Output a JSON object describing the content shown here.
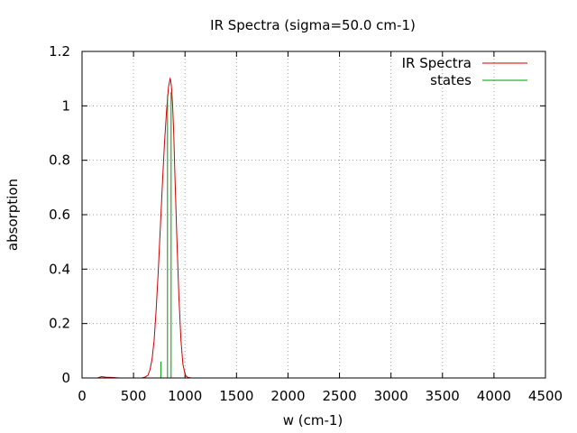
{
  "chart_data": {
    "type": "line",
    "title": "IR Spectra (sigma=50.0 cm-1)",
    "xlabel": "w (cm-1)",
    "ylabel": "absorption",
    "xlim": [
      0,
      4500
    ],
    "ylim": [
      0,
      1.2
    ],
    "xticks": [
      0,
      500,
      1000,
      1500,
      2000,
      2500,
      3000,
      3500,
      4000,
      4500
    ],
    "yticks": [
      0,
      0.2,
      0.4,
      0.6,
      0.8,
      1,
      1.2
    ],
    "xtick_labels": [
      "0",
      "500",
      "1000",
      "1500",
      "2000",
      "2500",
      "3000",
      "3500",
      "4000",
      "4500"
    ],
    "ytick_labels": [
      "0",
      "0.2",
      "0.4",
      "0.6",
      "0.8",
      "1",
      "1.2"
    ],
    "grid": true,
    "legend_position": "top-right",
    "series": [
      {
        "name": "IR Spectra",
        "kind": "line",
        "color": "#cc0000",
        "x": [
          100,
          150,
          190,
          230,
          280,
          330,
          370,
          420,
          500,
          580,
          610,
          640,
          660,
          680,
          700,
          720,
          740,
          760,
          780,
          800,
          820,
          840,
          850,
          855,
          860,
          865,
          870,
          880,
          890,
          900,
          920,
          940,
          960,
          980,
          1000,
          1010,
          1030,
          1060,
          1100
        ],
        "y": [
          0,
          0,
          0.005,
          0.003,
          0.002,
          0.001,
          0,
          0,
          0,
          0,
          0.003,
          0.01,
          0.03,
          0.07,
          0.14,
          0.25,
          0.39,
          0.55,
          0.71,
          0.86,
          0.98,
          1.07,
          1.09,
          1.1,
          1.095,
          1.08,
          1.06,
          1.0,
          0.9,
          0.77,
          0.52,
          0.3,
          0.14,
          0.05,
          0.015,
          0.007,
          0.002,
          0,
          0
        ]
      },
      {
        "name": "states",
        "kind": "impulse",
        "color": "#009900",
        "x": [
          765,
          830,
          865
        ],
        "y": [
          0.06,
          1.04,
          1.05
        ]
      }
    ]
  }
}
